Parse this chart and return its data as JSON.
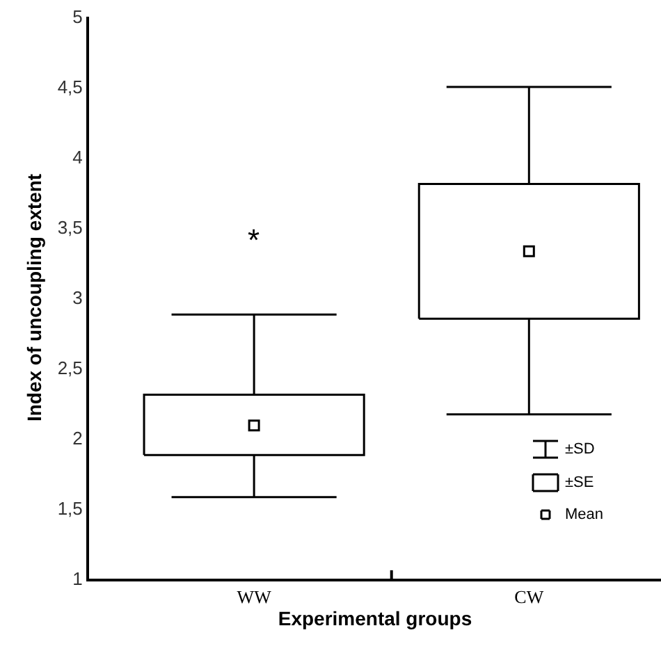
{
  "chart_data": {
    "type": "box",
    "xlabel": "Experimental groups",
    "ylabel": "Index of uncoupling extent",
    "categories": [
      "WW",
      "CW"
    ],
    "boxes": [
      {
        "low": 1.58,
        "q1": 1.88,
        "q3": 2.31,
        "high": 2.88,
        "mean": 2.09
      },
      {
        "low": 2.17,
        "q1": 2.85,
        "q3": 3.81,
        "high": 4.5,
        "mean": 3.33
      }
    ],
    "color": "#000000",
    "ylim": [
      1,
      5
    ],
    "yticks": [
      1,
      {
        "value": 1.5,
        "label": "1,5"
      },
      2,
      {
        "value": 2.5,
        "label": "2,5"
      },
      3,
      {
        "value": 3.5,
        "label": "3,5"
      },
      4,
      {
        "value": 4.5,
        "label": "4,5"
      },
      5
    ],
    "marker": "square",
    "annotations": [
      "*",
      "±SD",
      "±SE",
      "Mean"
    ]
  }
}
